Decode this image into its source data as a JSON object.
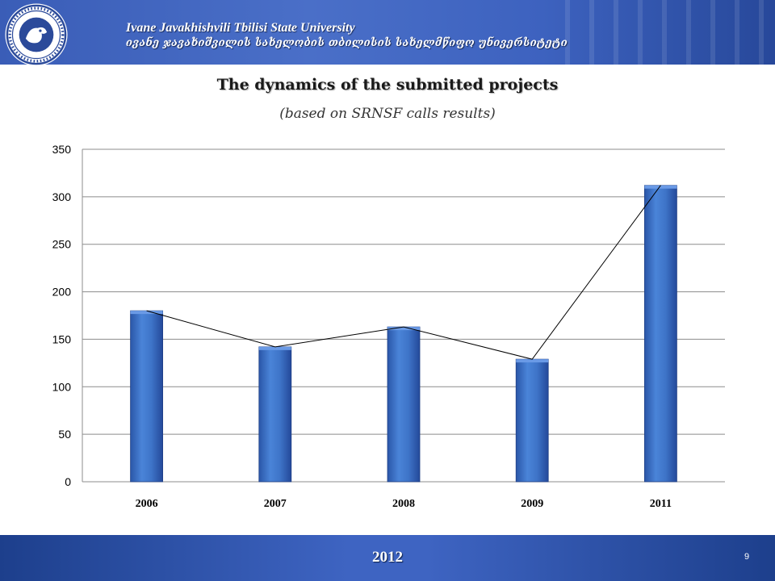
{
  "header": {
    "university_en": "Ivane Javakhishvili Tbilisi State University",
    "university_ka": "ივანე ჯავახიშვილის სახელობის თბილისის სახელმწიფო უნივერსიტეტი",
    "logo_icon": "university-seal-icon"
  },
  "slide": {
    "title": "The dynamics of the submitted projects",
    "subtitle": "(based on SRNSF calls results)"
  },
  "footer": {
    "year": "2012",
    "page_number": "9"
  },
  "colors": {
    "header_blue": "#3d62bf",
    "bar_blue": "#3a6fc4",
    "footer_blue": "#2a4ea6"
  },
  "chart_data": {
    "type": "bar",
    "categories": [
      "2006",
      "2007",
      "2008",
      "2009",
      "2011"
    ],
    "values": [
      180,
      142,
      163,
      129,
      312
    ],
    "ylim": [
      0,
      350
    ],
    "y_ticks": [
      0,
      50,
      100,
      150,
      200,
      250,
      300,
      350
    ],
    "grid": true,
    "overlay_line": true,
    "legend": "none"
  }
}
